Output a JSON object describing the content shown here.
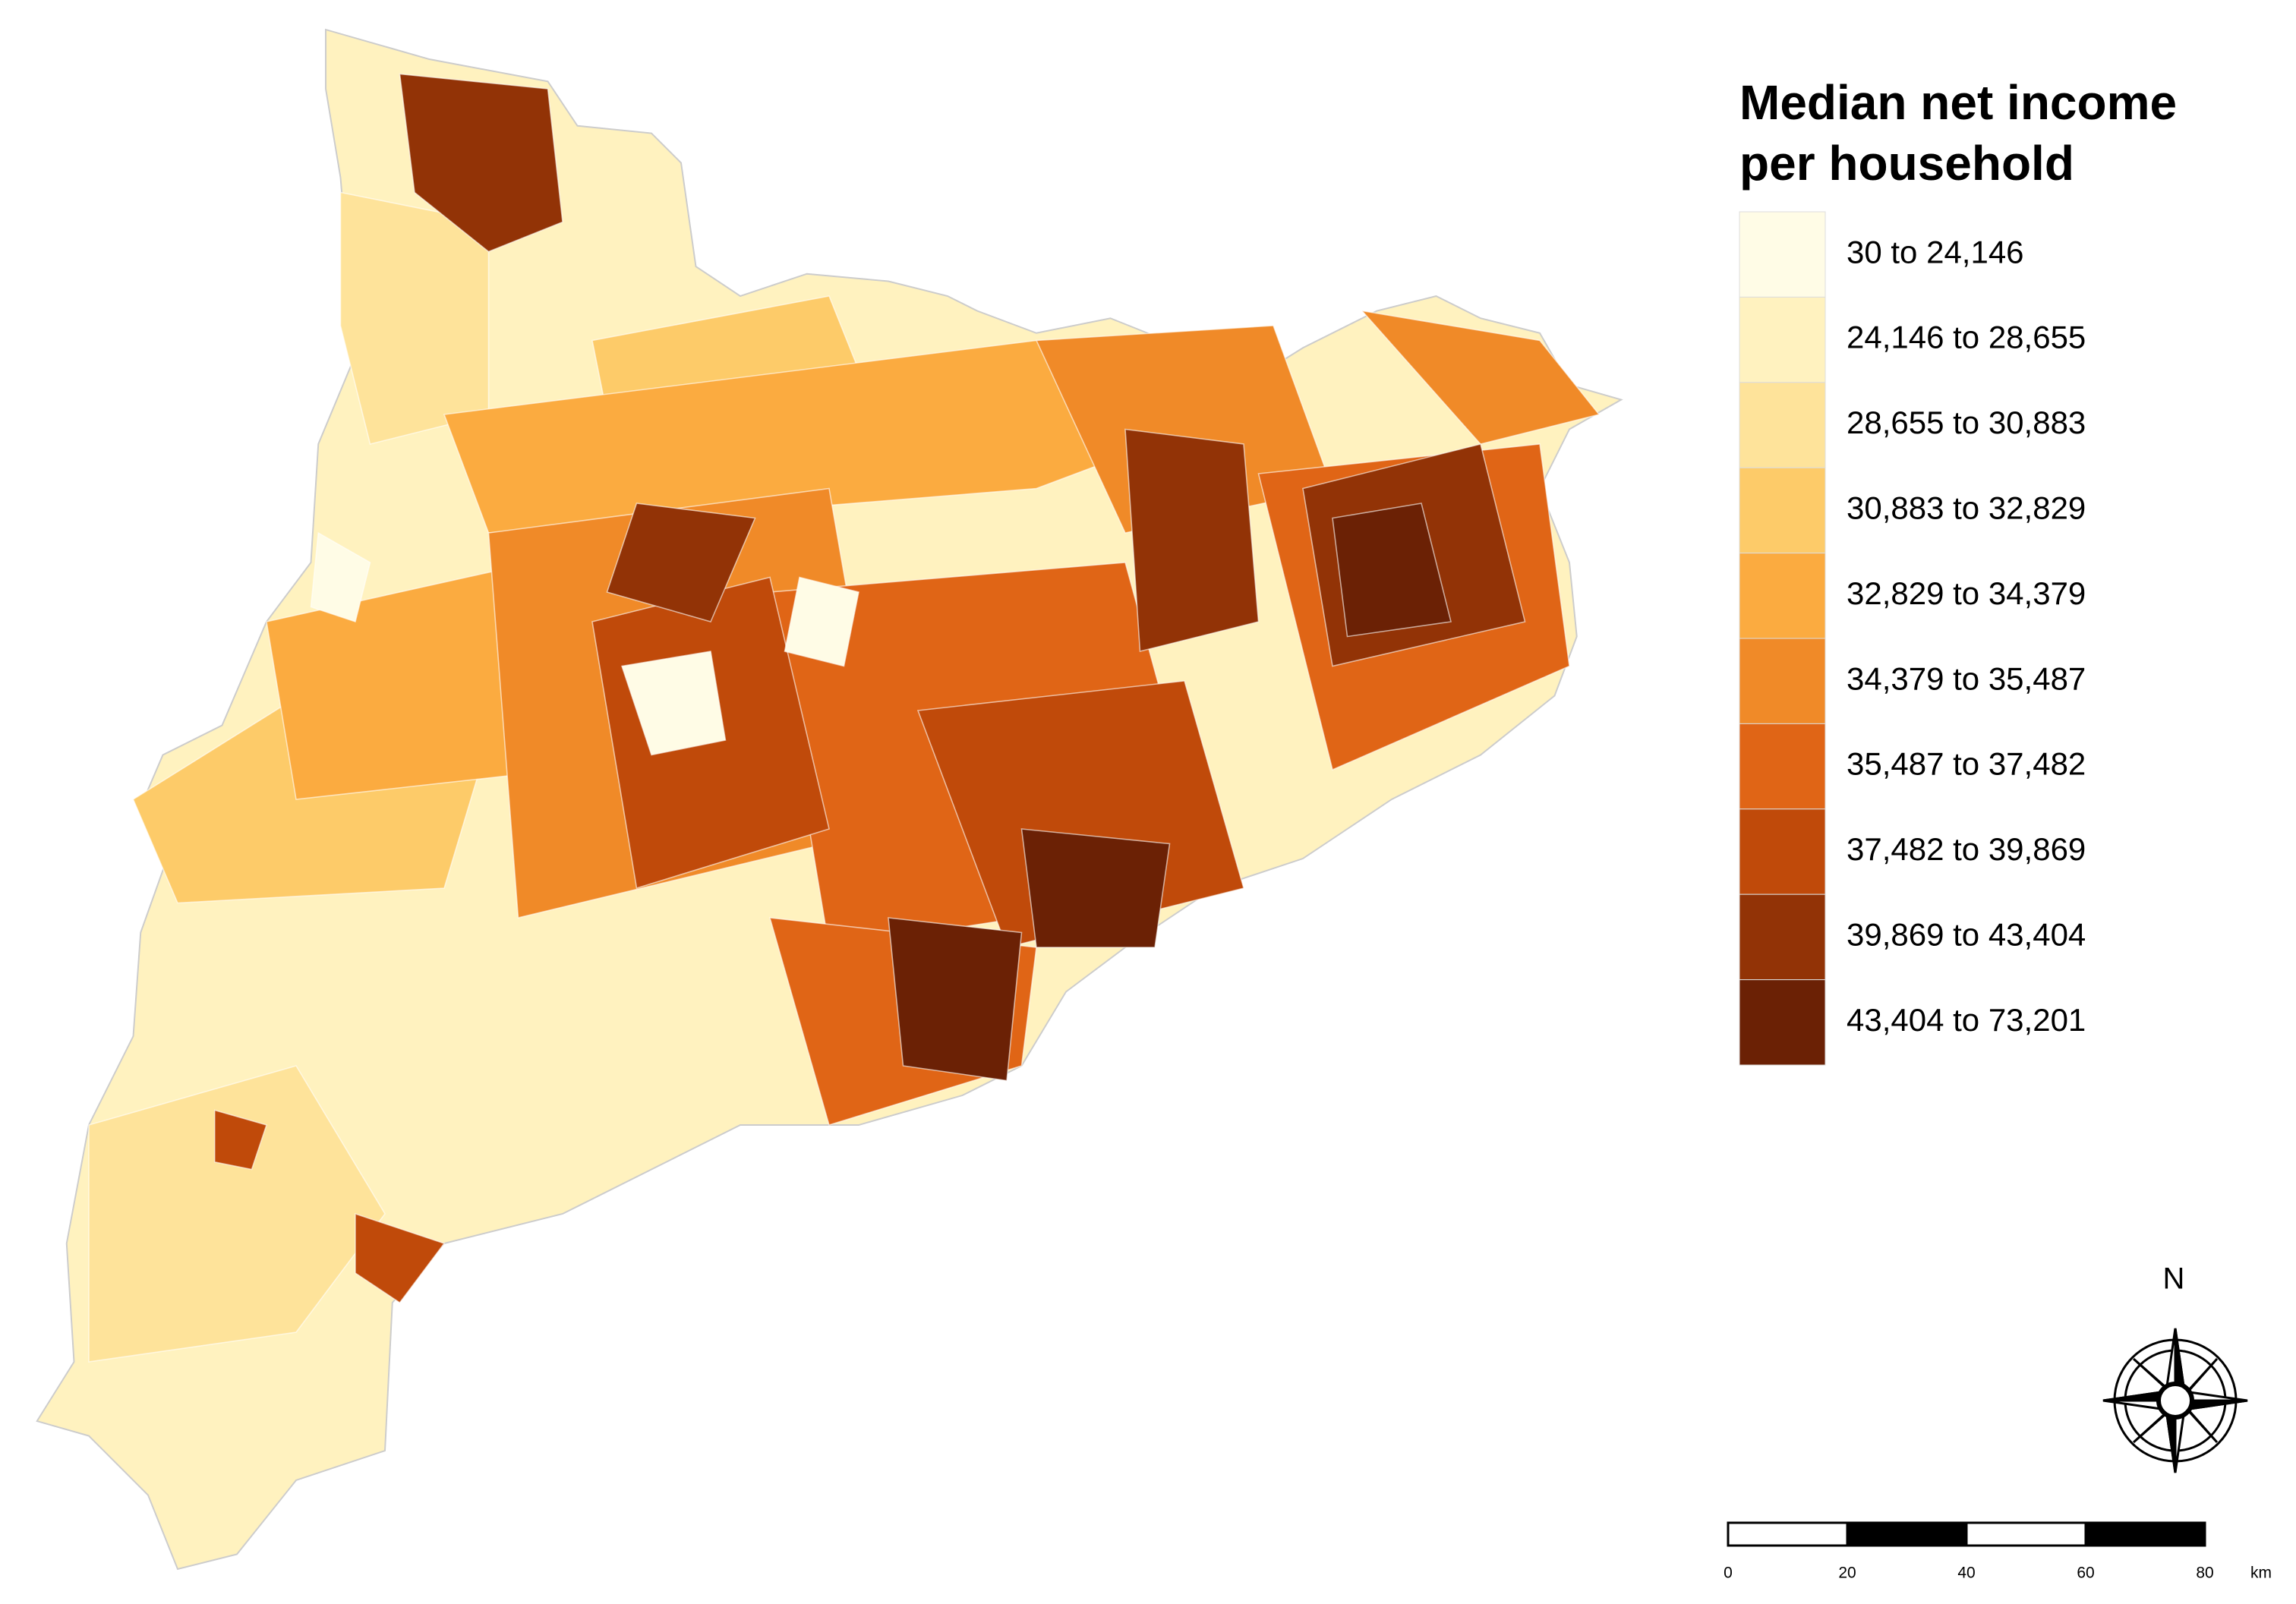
{
  "legend": {
    "title_lines": [
      "Median net income",
      "per household"
    ],
    "classes": [
      {
        "label": "30 to 24,146",
        "color": "#fffce6"
      },
      {
        "label": "24,146 to 28,655",
        "color": "#fff2bf"
      },
      {
        "label": "28,655 to 30,883",
        "color": "#fee39a"
      },
      {
        "label": "30,883 to 32,829",
        "color": "#fdcb69"
      },
      {
        "label": "32,829 to 34,379",
        "color": "#fbab40"
      },
      {
        "label": "34,379 to 35,487",
        "color": "#f08a28"
      },
      {
        "label": "35,487 to 37,482",
        "color": "#e06516"
      },
      {
        "label": "37,482 to 39,869",
        "color": "#c04a0a"
      },
      {
        "label": "39,869 to 43,404",
        "color": "#923306"
      },
      {
        "label": "43,404 to 73,201",
        "color": "#6b2105"
      }
    ]
  },
  "scale_bar": {
    "ticks": [
      0,
      20,
      40,
      60,
      80
    ],
    "unit": "km"
  },
  "north_arrow": {
    "label": "N"
  }
}
